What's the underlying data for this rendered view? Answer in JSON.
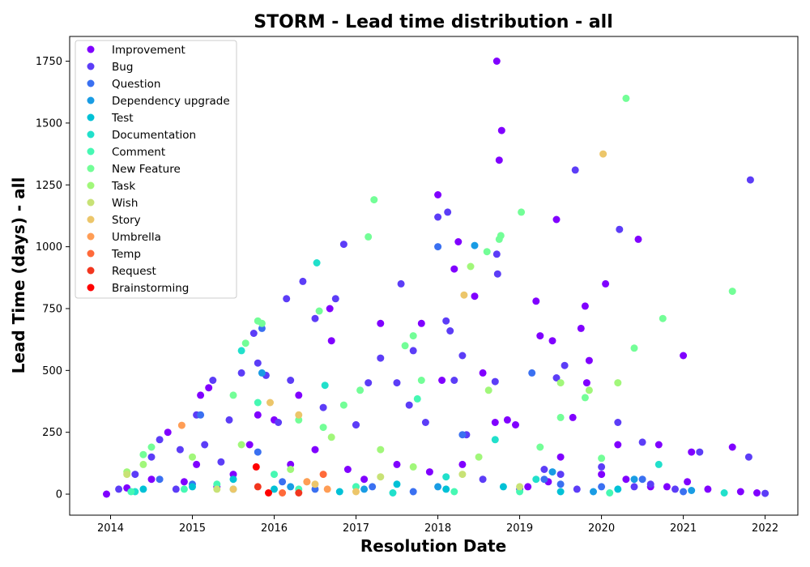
{
  "chart_data": {
    "type": "scatter",
    "title": "STORM - Lead time distribution - all",
    "xlabel": "Resolution Date",
    "ylabel": "Lead Time (days) - all",
    "xlim": [
      2013.5,
      2022.4
    ],
    "ylim": [
      -85,
      1850
    ],
    "x_ticks": [
      {
        "value": 2014,
        "label": "2014"
      },
      {
        "value": 2015,
        "label": "2015"
      },
      {
        "value": 2016,
        "label": "2016"
      },
      {
        "value": 2017,
        "label": "2017"
      },
      {
        "value": 2018,
        "label": "2018"
      },
      {
        "value": 2019,
        "label": "2019"
      },
      {
        "value": 2020,
        "label": "2020"
      },
      {
        "value": 2021,
        "label": "2021"
      },
      {
        "value": 2022,
        "label": "2022"
      }
    ],
    "y_ticks": [
      {
        "value": 0,
        "label": "0"
      },
      {
        "value": 250,
        "label": "250"
      },
      {
        "value": 500,
        "label": "500"
      },
      {
        "value": 750,
        "label": "750"
      },
      {
        "value": 1000,
        "label": "1000"
      },
      {
        "value": 1250,
        "label": "1250"
      },
      {
        "value": 1500,
        "label": "1500"
      },
      {
        "value": 1750,
        "label": "1750"
      }
    ],
    "grid": false,
    "legend_position": "top-left",
    "series": [
      {
        "name": "Improvement",
        "color": "#8000ff",
        "points": [
          [
            2013.95,
            0
          ],
          [
            2014.2,
            25
          ],
          [
            2014.5,
            60
          ],
          [
            2014.7,
            250
          ],
          [
            2014.9,
            50
          ],
          [
            2015.05,
            120
          ],
          [
            2015.1,
            400
          ],
          [
            2015.2,
            430
          ],
          [
            2015.3,
            30
          ],
          [
            2015.5,
            80
          ],
          [
            2015.7,
            200
          ],
          [
            2015.8,
            320
          ],
          [
            2016.0,
            300
          ],
          [
            2016.2,
            120
          ],
          [
            2016.3,
            400
          ],
          [
            2016.5,
            180
          ],
          [
            2016.68,
            750
          ],
          [
            2016.7,
            620
          ],
          [
            2016.9,
            100
          ],
          [
            2017.0,
            280
          ],
          [
            2017.1,
            60
          ],
          [
            2017.3,
            690
          ],
          [
            2017.5,
            120
          ],
          [
            2017.8,
            690
          ],
          [
            2017.9,
            90
          ],
          [
            2018.0,
            1210
          ],
          [
            2018.05,
            460
          ],
          [
            2018.2,
            910
          ],
          [
            2018.25,
            1020
          ],
          [
            2018.3,
            120
          ],
          [
            2018.45,
            800
          ],
          [
            2018.55,
            490
          ],
          [
            2018.7,
            290
          ],
          [
            2018.72,
            1750
          ],
          [
            2018.75,
            1350
          ],
          [
            2018.78,
            1470
          ],
          [
            2018.85,
            300
          ],
          [
            2018.95,
            280
          ],
          [
            2019.1,
            30
          ],
          [
            2019.2,
            780
          ],
          [
            2019.25,
            640
          ],
          [
            2019.35,
            50
          ],
          [
            2019.4,
            620
          ],
          [
            2019.45,
            1110
          ],
          [
            2019.5,
            150
          ],
          [
            2019.65,
            310
          ],
          [
            2019.75,
            670
          ],
          [
            2019.8,
            760
          ],
          [
            2019.85,
            540
          ],
          [
            2019.82,
            450
          ],
          [
            2020.0,
            80
          ],
          [
            2020.05,
            850
          ],
          [
            2020.2,
            200
          ],
          [
            2020.3,
            60
          ],
          [
            2020.45,
            1030
          ],
          [
            2020.6,
            30
          ],
          [
            2020.7,
            200
          ],
          [
            2020.8,
            30
          ],
          [
            2021.0,
            560
          ],
          [
            2021.05,
            50
          ],
          [
            2021.1,
            170
          ],
          [
            2021.3,
            20
          ],
          [
            2021.6,
            190
          ],
          [
            2021.7,
            10
          ],
          [
            2021.9,
            5
          ]
        ]
      },
      {
        "name": "Bug",
        "color": "#5c3df7",
        "points": [
          [
            2014.1,
            20
          ],
          [
            2014.3,
            80
          ],
          [
            2014.5,
            150
          ],
          [
            2014.6,
            220
          ],
          [
            2014.8,
            20
          ],
          [
            2014.85,
            180
          ],
          [
            2015.05,
            320
          ],
          [
            2015.15,
            200
          ],
          [
            2015.25,
            460
          ],
          [
            2015.35,
            130
          ],
          [
            2015.45,
            300
          ],
          [
            2015.6,
            490
          ],
          [
            2015.75,
            650
          ],
          [
            2015.8,
            530
          ],
          [
            2015.9,
            480
          ],
          [
            2016.05,
            290
          ],
          [
            2016.15,
            790
          ],
          [
            2016.2,
            460
          ],
          [
            2016.35,
            860
          ],
          [
            2016.5,
            710
          ],
          [
            2016.6,
            350
          ],
          [
            2016.75,
            790
          ],
          [
            2016.85,
            1010
          ],
          [
            2017.0,
            280
          ],
          [
            2017.15,
            450
          ],
          [
            2017.3,
            550
          ],
          [
            2017.5,
            450
          ],
          [
            2017.55,
            850
          ],
          [
            2017.65,
            360
          ],
          [
            2017.7,
            580
          ],
          [
            2017.85,
            290
          ],
          [
            2018.0,
            1120
          ],
          [
            2018.1,
            700
          ],
          [
            2018.12,
            1140
          ],
          [
            2018.15,
            660
          ],
          [
            2018.2,
            460
          ],
          [
            2018.3,
            560
          ],
          [
            2018.35,
            240
          ],
          [
            2018.55,
            60
          ],
          [
            2018.7,
            455
          ],
          [
            2018.72,
            970
          ],
          [
            2018.73,
            890
          ],
          [
            2019.0,
            20
          ],
          [
            2019.3,
            100
          ],
          [
            2019.45,
            470
          ],
          [
            2019.5,
            80
          ],
          [
            2019.55,
            520
          ],
          [
            2019.68,
            1310
          ],
          [
            2019.7,
            20
          ],
          [
            2020.0,
            110
          ],
          [
            2020.2,
            290
          ],
          [
            2020.22,
            1070
          ],
          [
            2020.4,
            30
          ],
          [
            2020.5,
            210
          ],
          [
            2020.6,
            40
          ],
          [
            2020.9,
            20
          ],
          [
            2021.2,
            170
          ],
          [
            2021.8,
            150
          ],
          [
            2021.82,
            1270
          ],
          [
            2022.0,
            3
          ]
        ]
      },
      {
        "name": "Question",
        "color": "#3a70f1",
        "points": [
          [
            2014.6,
            60
          ],
          [
            2015.0,
            40
          ],
          [
            2015.1,
            320
          ],
          [
            2015.8,
            170
          ],
          [
            2015.85,
            670
          ],
          [
            2016.1,
            50
          ],
          [
            2016.5,
            20
          ],
          [
            2017.2,
            30
          ],
          [
            2017.7,
            10
          ],
          [
            2018.0,
            1000
          ],
          [
            2018.3,
            240
          ],
          [
            2019.15,
            490
          ],
          [
            2019.3,
            60
          ],
          [
            2019.5,
            40
          ],
          [
            2020.0,
            30
          ],
          [
            2020.5,
            60
          ],
          [
            2021.0,
            10
          ]
        ]
      },
      {
        "name": "Dependency upgrade",
        "color": "#199ce4",
        "points": [
          [
            2015.85,
            490
          ],
          [
            2016.2,
            30
          ],
          [
            2017.1,
            20
          ],
          [
            2018.45,
            1005
          ],
          [
            2018.0,
            30
          ],
          [
            2019.4,
            90
          ],
          [
            2019.9,
            10
          ],
          [
            2020.4,
            60
          ],
          [
            2021.1,
            15
          ]
        ]
      },
      {
        "name": "Test",
        "color": "#00c1d6",
        "points": [
          [
            2014.4,
            20
          ],
          [
            2015.0,
            30
          ],
          [
            2015.5,
            60
          ],
          [
            2016.0,
            20
          ],
          [
            2016.8,
            10
          ],
          [
            2017.5,
            40
          ],
          [
            2018.1,
            20
          ],
          [
            2018.8,
            30
          ],
          [
            2019.5,
            10
          ],
          [
            2020.2,
            20
          ]
        ]
      },
      {
        "name": "Documentation",
        "color": "#21e0cb",
        "points": [
          [
            2014.3,
            10
          ],
          [
            2015.5,
            20
          ],
          [
            2015.6,
            580
          ],
          [
            2016.52,
            935
          ],
          [
            2016.62,
            440
          ],
          [
            2017.0,
            30
          ],
          [
            2017.45,
            5
          ],
          [
            2018.1,
            70
          ],
          [
            2018.7,
            220
          ],
          [
            2019.2,
            60
          ],
          [
            2020.7,
            120
          ],
          [
            2021.5,
            5
          ]
        ]
      },
      {
        "name": "Comment",
        "color": "#46f8b3",
        "points": [
          [
            2014.25,
            10
          ],
          [
            2014.9,
            20
          ],
          [
            2015.3,
            40
          ],
          [
            2015.8,
            370
          ],
          [
            2016.0,
            80
          ],
          [
            2016.3,
            20
          ],
          [
            2017.0,
            30
          ],
          [
            2017.75,
            385
          ],
          [
            2018.2,
            10
          ],
          [
            2019.0,
            10
          ],
          [
            2020.1,
            5
          ]
        ]
      },
      {
        "name": "New Feature",
        "color": "#73fe97",
        "points": [
          [
            2014.4,
            160
          ],
          [
            2014.5,
            190
          ],
          [
            2015.5,
            400
          ],
          [
            2015.65,
            610
          ],
          [
            2015.8,
            700
          ],
          [
            2015.85,
            690
          ],
          [
            2016.3,
            300
          ],
          [
            2016.55,
            740
          ],
          [
            2016.6,
            270
          ],
          [
            2016.85,
            360
          ],
          [
            2017.05,
            420
          ],
          [
            2017.15,
            1040
          ],
          [
            2017.22,
            1190
          ],
          [
            2017.6,
            600
          ],
          [
            2017.7,
            640
          ],
          [
            2017.8,
            460
          ],
          [
            2018.6,
            980
          ],
          [
            2018.75,
            1030
          ],
          [
            2018.77,
            1045
          ],
          [
            2019.02,
            1140
          ],
          [
            2019.25,
            190
          ],
          [
            2019.5,
            310
          ],
          [
            2019.8,
            390
          ],
          [
            2020.0,
            145
          ],
          [
            2020.3,
            1600
          ],
          [
            2020.4,
            590
          ],
          [
            2020.75,
            710
          ],
          [
            2021.6,
            820
          ]
        ]
      },
      {
        "name": "Task",
        "color": "#a1f77a",
        "points": [
          [
            2014.2,
            90
          ],
          [
            2014.4,
            120
          ],
          [
            2015.0,
            150
          ],
          [
            2015.6,
            200
          ],
          [
            2016.2,
            100
          ],
          [
            2016.7,
            230
          ],
          [
            2017.3,
            180
          ],
          [
            2017.7,
            110
          ],
          [
            2018.4,
            920
          ],
          [
            2018.5,
            150
          ],
          [
            2018.62,
            420
          ],
          [
            2019.5,
            450
          ],
          [
            2020.2,
            450
          ],
          [
            2019.85,
            420
          ]
        ]
      },
      {
        "name": "Wish",
        "color": "#c8e276",
        "points": [
          [
            2014.2,
            80
          ],
          [
            2015.3,
            20
          ],
          [
            2016.4,
            50
          ],
          [
            2017.3,
            70
          ],
          [
            2018.3,
            80
          ],
          [
            2019.0,
            30
          ]
        ]
      },
      {
        "name": "Story",
        "color": "#ecc66a",
        "points": [
          [
            2015.5,
            20
          ],
          [
            2015.95,
            370
          ],
          [
            2016.3,
            320
          ],
          [
            2016.5,
            40
          ],
          [
            2017.0,
            10
          ],
          [
            2018.32,
            805
          ],
          [
            2020.02,
            1375
          ]
        ]
      },
      {
        "name": "Umbrella",
        "color": "#ff9d55",
        "points": [
          [
            2014.87,
            278
          ],
          [
            2016.4,
            50
          ],
          [
            2016.65,
            20
          ]
        ]
      },
      {
        "name": "Temp",
        "color": "#ff6a3a",
        "points": [
          [
            2016.1,
            5
          ],
          [
            2016.6,
            80
          ]
        ]
      },
      {
        "name": "Request",
        "color": "#f2361e",
        "points": [
          [
            2015.8,
            30
          ],
          [
            2016.3,
            5
          ]
        ]
      },
      {
        "name": "Brainstorming",
        "color": "#ff0000",
        "points": [
          [
            2015.78,
            110
          ],
          [
            2015.93,
            5
          ]
        ]
      }
    ]
  }
}
